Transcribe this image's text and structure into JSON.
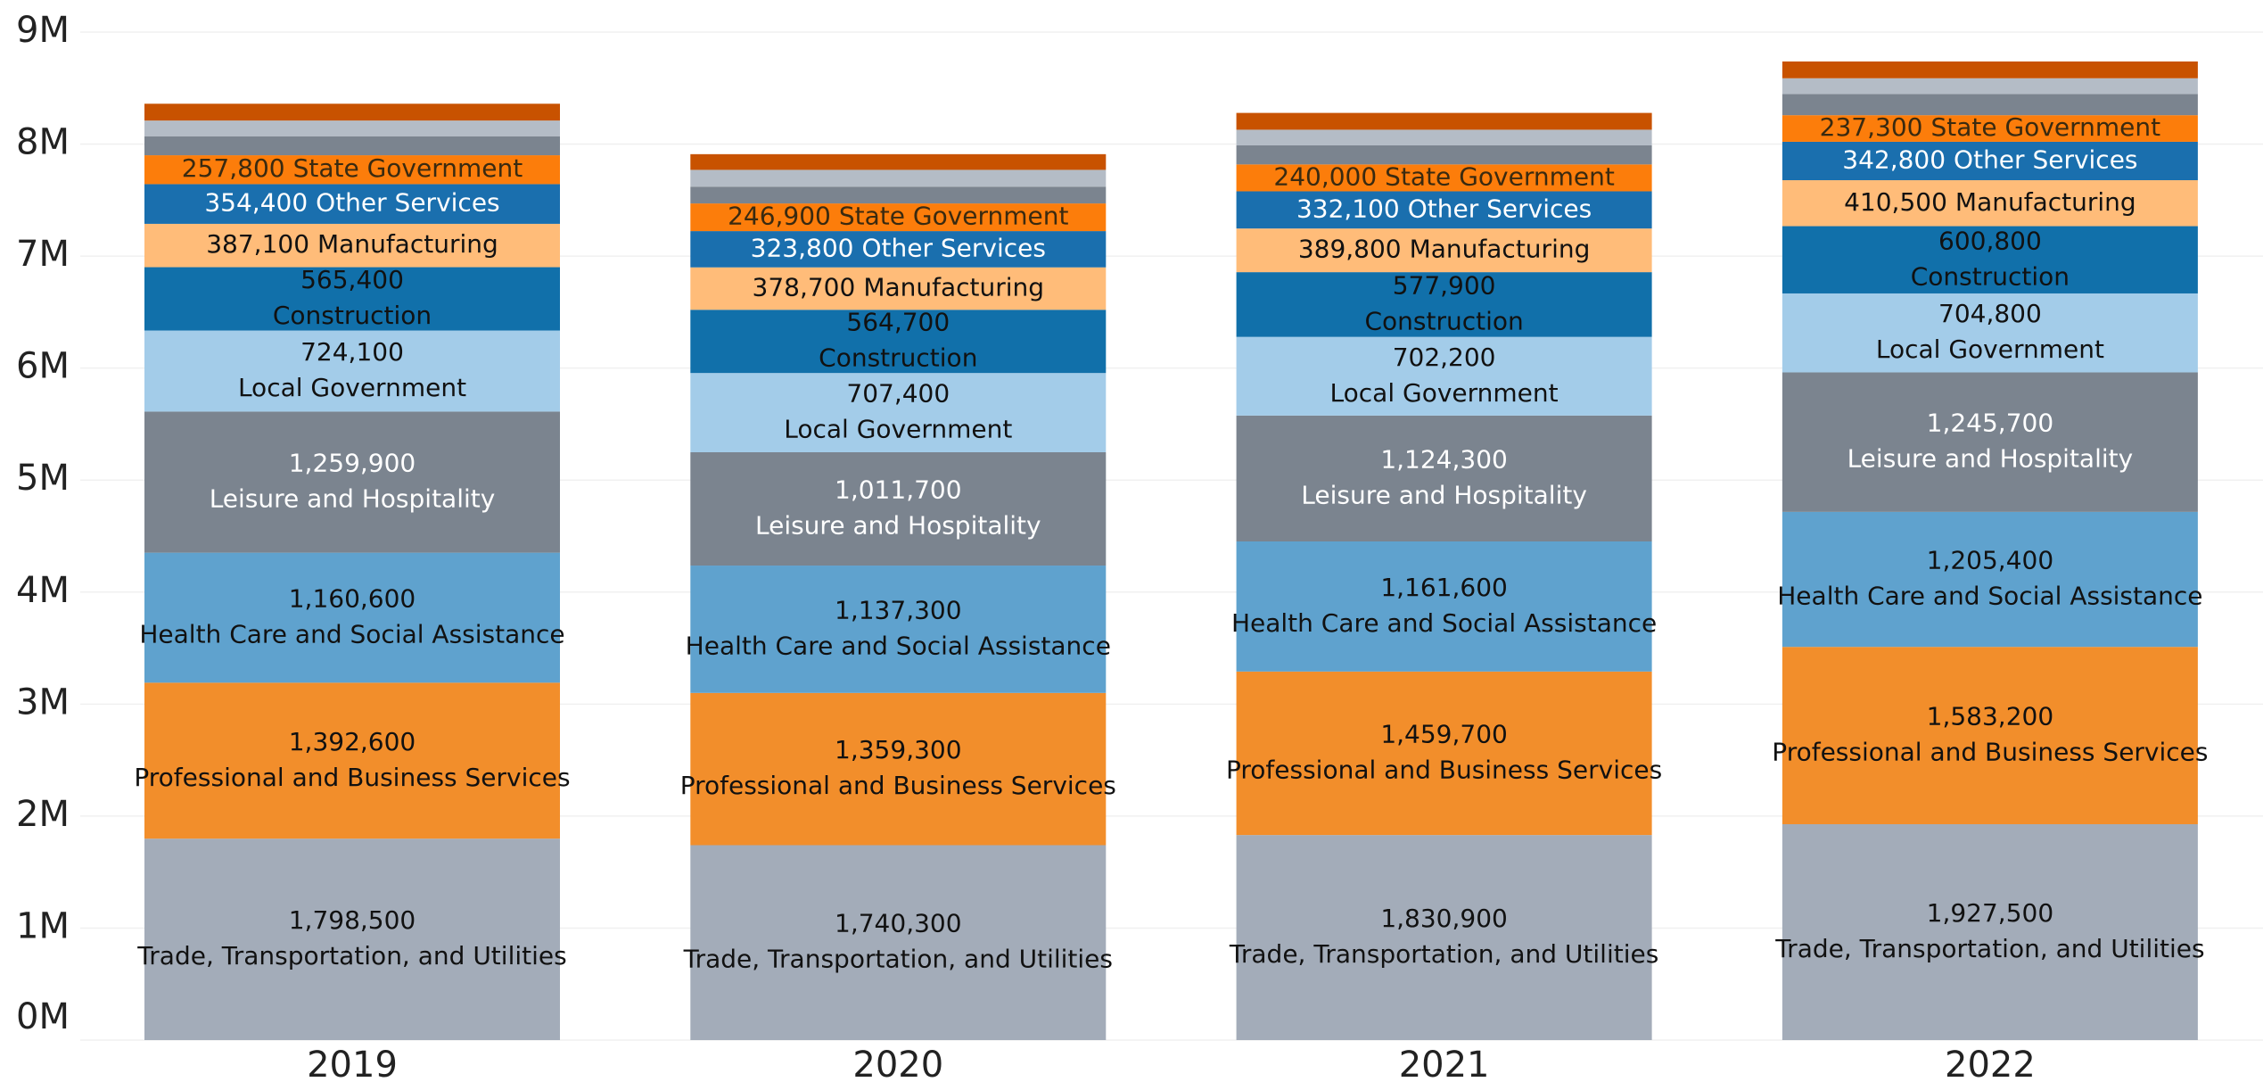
{
  "chart_data": {
    "type": "stacked_bar",
    "categories": [
      "2019",
      "2020",
      "2021",
      "2022"
    ],
    "ylim": [
      0,
      9000000
    ],
    "yticks": [
      {
        "value": 0,
        "label": "0M"
      },
      {
        "value": 1000000,
        "label": "1M"
      },
      {
        "value": 2000000,
        "label": "2M"
      },
      {
        "value": 3000000,
        "label": "3M"
      },
      {
        "value": 4000000,
        "label": "4M"
      },
      {
        "value": 5000000,
        "label": "5M"
      },
      {
        "value": 6000000,
        "label": "6M"
      },
      {
        "value": 7000000,
        "label": "7M"
      },
      {
        "value": 8000000,
        "label": "8M"
      },
      {
        "value": 9000000,
        "label": "9M"
      }
    ],
    "grid": true,
    "series": [
      {
        "name": "Trade, Transportation, and Utilities",
        "color": "#a3acb9",
        "label_color": "#111111",
        "values": [
          1798500,
          1740300,
          1830900,
          1927500
        ],
        "value_labels": [
          "1,798,500",
          "1,740,300",
          "1,830,900",
          "1,927,500"
        ]
      },
      {
        "name": "Professional and Business Services",
        "color": "#f28e2b",
        "label_color": "#111111",
        "values": [
          1392600,
          1359300,
          1459700,
          1583200
        ],
        "value_labels": [
          "1,392,600",
          "1,359,300",
          "1,459,700",
          "1,583,200"
        ]
      },
      {
        "name": "Health Care and Social Assistance",
        "color": "#5fa2ce",
        "label_color": "#111111",
        "values": [
          1160600,
          1137300,
          1161600,
          1205400
        ],
        "value_labels": [
          "1,160,600",
          "1,137,300",
          "1,161,600",
          "1,205,400"
        ]
      },
      {
        "name": "Leisure and Hospitality",
        "color": "#7b848f",
        "label_color": "#ffffff",
        "values": [
          1259900,
          1011700,
          1124300,
          1245700
        ],
        "value_labels": [
          "1,259,900",
          "1,011,700",
          "1,124,300",
          "1,245,700"
        ]
      },
      {
        "name": "Local Government",
        "color": "#a3cce9",
        "label_color": "#111111",
        "values": [
          724100,
          707400,
          702200,
          704800
        ],
        "value_labels": [
          "724,100",
          "707,400",
          "702,200",
          "704,800"
        ]
      },
      {
        "name": "Construction",
        "color": "#1170aa",
        "label_color": "#111111",
        "values": [
          565400,
          564700,
          577900,
          600800
        ],
        "value_labels": [
          "565,400",
          "564,700",
          "577,900",
          "600,800"
        ]
      },
      {
        "name": "Manufacturing",
        "color": "#ffbc79",
        "label_color": "#111111",
        "values": [
          387100,
          378700,
          389800,
          410500
        ],
        "value_labels": [
          "387,100",
          "378,700",
          "389,800",
          "410,500"
        ]
      },
      {
        "name": "Other Services",
        "color": "#1a6fae",
        "label_color": "#ffffff",
        "values": [
          354400,
          323800,
          332100,
          342800
        ],
        "value_labels": [
          "354,400",
          "323,800",
          "332,100",
          "342,800"
        ]
      },
      {
        "name": "State Government",
        "color": "#fc7d0b",
        "label_color": "#3a2a10",
        "values": [
          257800,
          246900,
          240000,
          237300
        ],
        "value_labels": [
          "257,800",
          "246,900",
          "240,000",
          "237,300"
        ]
      },
      {
        "name": null,
        "color": "#7b848f",
        "values": [
          170000,
          150000,
          170000,
          190000
        ]
      },
      {
        "name": null,
        "color": "#b4bcc6",
        "values": [
          140000,
          150000,
          140000,
          140000
        ]
      },
      {
        "name": null,
        "color": "#c85200",
        "values": [
          150000,
          140000,
          150000,
          150000
        ]
      }
    ]
  }
}
